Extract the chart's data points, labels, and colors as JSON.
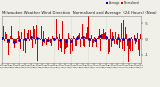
{
  "title": "Milwaukee Weather Wind Direction  Normalized and Average  (24 Hours) (New)",
  "title_fontsize": 2.8,
  "bg_color": "#f0f0e8",
  "plot_bg_color": "#f0f0e8",
  "bar_color": "#dd0000",
  "avg_color": "#0000cc",
  "ylim": [
    -1.5,
    1.5
  ],
  "num_points": 288,
  "seed": 42,
  "grid_color": "#bbbbbb",
  "legend_bar_label": "Normalized",
  "legend_avg_label": "Average",
  "ytick_labels": [
    "5",
    "0",
    "-1"
  ],
  "tick_fontsize": 2.8
}
